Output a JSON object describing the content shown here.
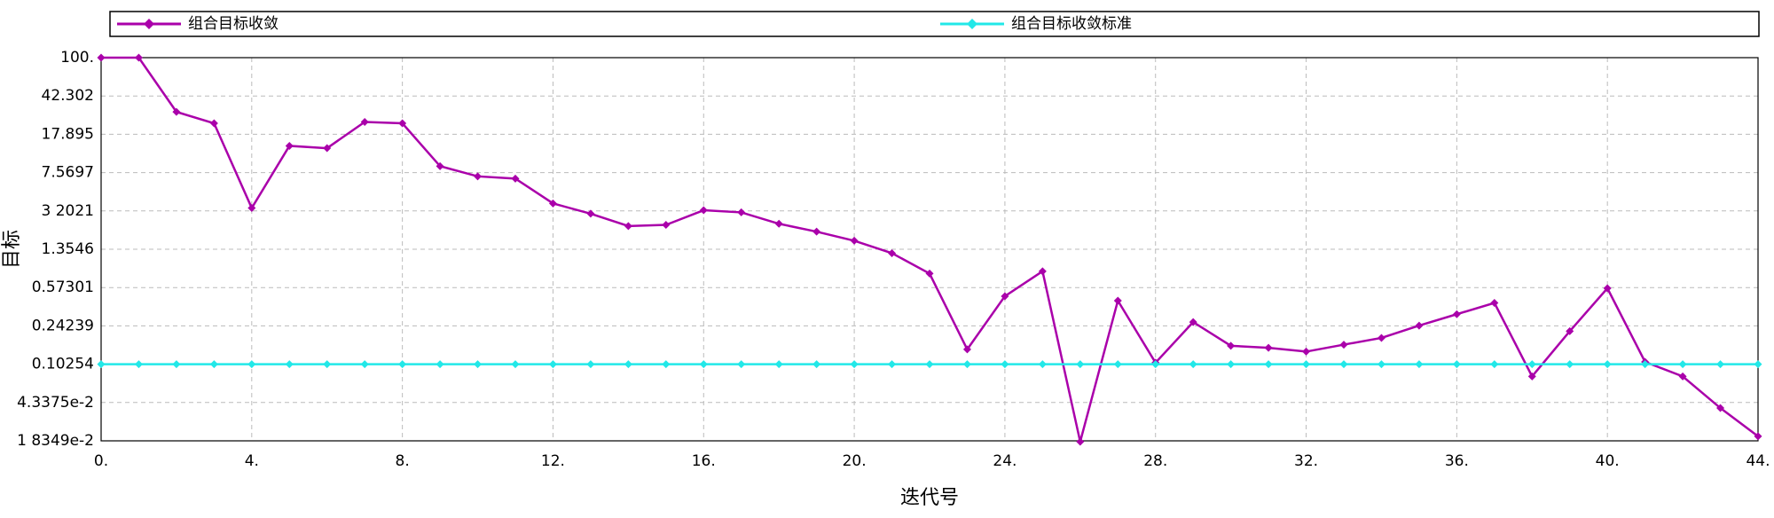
{
  "chart_data": {
    "type": "line",
    "x_label": "迭代号",
    "y_label": "目标",
    "x": [
      0,
      1,
      2,
      3,
      4,
      5,
      6,
      7,
      8,
      9,
      10,
      11,
      12,
      13,
      14,
      15,
      16,
      17,
      18,
      19,
      20,
      21,
      22,
      23,
      24,
      25,
      26,
      27,
      28,
      29,
      30,
      31,
      32,
      33,
      34,
      35,
      36,
      37,
      38,
      39,
      40,
      41,
      42,
      43,
      44
    ],
    "series": [
      {
        "name": "组合目标收敛",
        "color": "#aa00aa",
        "values": [
          100,
          100,
          29.6,
          22.9,
          3.42,
          13.8,
          13.1,
          23.6,
          22.9,
          8.75,
          6.96,
          6.62,
          3.79,
          3.01,
          2.28,
          2.34,
          3.25,
          3.1,
          2.4,
          2.01,
          1.64,
          1.24,
          0.785,
          0.143,
          0.472,
          0.826,
          0.018,
          0.427,
          0.106,
          0.264,
          0.155,
          0.148,
          0.136,
          0.159,
          0.185,
          0.244,
          0.315,
          0.406,
          0.078,
          0.215,
          0.564,
          0.108,
          0.078,
          0.0383,
          0.0203
        ]
      },
      {
        "name": "组合目标收敛标准",
        "color": "#22e8e8",
        "values": [
          0.10254,
          0.10254,
          0.10254,
          0.10254,
          0.10254,
          0.10254,
          0.10254,
          0.10254,
          0.10254,
          0.10254,
          0.10254,
          0.10254,
          0.10254,
          0.10254,
          0.10254,
          0.10254,
          0.10254,
          0.10254,
          0.10254,
          0.10254,
          0.10254,
          0.10254,
          0.10254,
          0.10254,
          0.10254,
          0.10254,
          0.10254,
          0.10254,
          0.10254,
          0.10254,
          0.10254,
          0.10254,
          0.10254,
          0.10254,
          0.10254,
          0.10254,
          0.10254,
          0.10254,
          0.10254,
          0.10254,
          0.10254,
          0.10254,
          0.10254,
          0.10254,
          0.10254
        ]
      }
    ],
    "xlim": [
      0,
      44
    ],
    "xticks": [
      {
        "value": 0,
        "label": "0."
      },
      {
        "value": 4,
        "label": "4."
      },
      {
        "value": 8,
        "label": "8."
      },
      {
        "value": 12,
        "label": "12."
      },
      {
        "value": 16,
        "label": "16."
      },
      {
        "value": 20,
        "label": "20."
      },
      {
        "value": 24,
        "label": "24."
      },
      {
        "value": 28,
        "label": "28."
      },
      {
        "value": 32,
        "label": "32."
      },
      {
        "value": 36,
        "label": "36."
      },
      {
        "value": 40,
        "label": "40."
      },
      {
        "value": 44,
        "label": "44."
      }
    ],
    "ylim": [
      0.018349,
      100
    ],
    "yticks": [
      {
        "value": 100,
        "label": "100."
      },
      42.302,
      17.895,
      7.5697,
      {
        "value": 3.2021,
        "label": "3 2021"
      },
      1.3546,
      0.57301,
      0.24239,
      0.10254,
      {
        "value": 0.043375,
        "label": "4.3375e-2"
      },
      {
        "value": 0.018349,
        "label": "1 8349e-2"
      }
    ],
    "y_scale": "log",
    "grid": true,
    "legend": "top"
  }
}
